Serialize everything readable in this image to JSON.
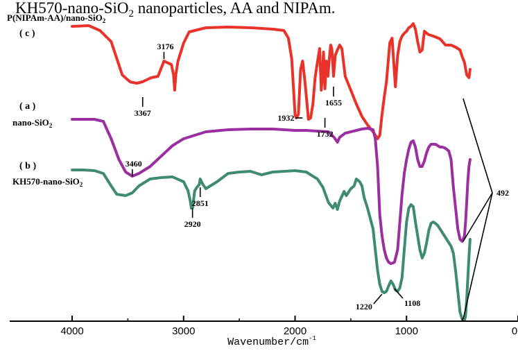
{
  "chart_data": {
    "type": "line",
    "title_partial": "KH570-nano-SiO",
    "title_partial_sub": "2",
    "title_partial_tail": " nanoparticles, AA and NIPAm.",
    "xlabel": "Wavenumber/cm",
    "xlabel_sup": "-1",
    "ylabel": "",
    "xlim": [
      4000,
      0
    ],
    "x_ticks": [
      {
        "value": 4000,
        "label": "4000"
      },
      {
        "value": 3000,
        "label": "3000"
      },
      {
        "value": 2000,
        "label": "2000"
      },
      {
        "value": 1000,
        "label": "1000"
      },
      {
        "value": 0,
        "label": "0"
      }
    ],
    "grid": false,
    "legend": "inline labels",
    "series": [
      {
        "id": "c",
        "tag": "( c )",
        "name_main": "P(NIPAm-AA)/nano-SiO",
        "name_sub": "2",
        "color": "#e8322a",
        "x": [
          4000,
          3850,
          3750,
          3650,
          3550,
          3480,
          3420,
          3370,
          3330,
          3290,
          3230,
          3200,
          3176,
          3150,
          3110,
          3090,
          3080,
          3070,
          3050,
          3000,
          2950,
          2800,
          2600,
          2400,
          2200,
          2100,
          2060,
          2030,
          2000,
          1990,
          1970,
          1950,
          1932,
          1910,
          1880,
          1860,
          1840,
          1820,
          1800,
          1780,
          1765,
          1755,
          1745,
          1732,
          1720,
          1705,
          1690,
          1680,
          1670,
          1655,
          1640,
          1620,
          1600,
          1580,
          1550,
          1500,
          1450,
          1400,
          1350,
          1300,
          1260,
          1240,
          1220,
          1200,
          1180,
          1150,
          1130,
          1100,
          1080,
          1060,
          1040,
          1020,
          1000,
          980,
          960,
          940,
          920,
          900,
          880,
          860,
          840,
          820,
          800,
          760,
          700,
          650,
          600,
          560,
          520,
          500,
          480,
          460,
          440,
          430
        ],
        "y": [
          38,
          37,
          44,
          60,
          108,
          118,
          120,
          118,
          115,
          112,
          110,
          98,
          88,
          90,
          93,
          108,
          130,
          108,
          88,
          62,
          46,
          40,
          39,
          40,
          42,
          44,
          55,
          85,
          165,
          170,
          165,
          100,
          88,
          120,
          172,
          170,
          150,
          112,
          90,
          70,
          130,
          110,
          75,
          128,
          88,
          110,
          80,
          65,
          70,
          110,
          80,
          72,
          65,
          70,
          110,
          130,
          150,
          168,
          180,
          190,
          200,
          195,
          165,
          140,
          118,
          62,
          55,
          125,
          80,
          60,
          52,
          48,
          45,
          40,
          38,
          34,
          42,
          60,
          75,
          72,
          45,
          48,
          50,
          52,
          56,
          65,
          65,
          68,
          72,
          82,
          90,
          108,
          112,
          100
        ],
        "annotations": [
          {
            "label": "3367",
            "x": 3367,
            "y": 140,
            "side": "below"
          },
          {
            "label": "3176",
            "x": 3176,
            "y": 85,
            "side": "above"
          },
          {
            "label": "1932",
            "x": 1932,
            "y": 170,
            "side": "left"
          },
          {
            "label": "1732",
            "x": 1732,
            "y": 170,
            "side": "below"
          },
          {
            "label": "1655",
            "x": 1655,
            "y": 125,
            "side": "below"
          }
        ]
      },
      {
        "id": "a",
        "tag": "( a )",
        "name_main": "nano-SiO",
        "name_sub": "2",
        "color": "#9b2fa0",
        "x": [
          4000,
          3800,
          3720,
          3650,
          3580,
          3520,
          3460,
          3400,
          3300,
          3200,
          3100,
          3000,
          2800,
          2600,
          2400,
          2200,
          2000,
          1900,
          1800,
          1700,
          1650,
          1620,
          1600,
          1550,
          1500,
          1450,
          1400,
          1350,
          1300,
          1280,
          1260,
          1240,
          1220,
          1200,
          1180,
          1160,
          1140,
          1120,
          1108,
          1080,
          1060,
          1040,
          1020,
          1000,
          980,
          960,
          940,
          920,
          900,
          880,
          860,
          840,
          820,
          800,
          780,
          760,
          740,
          720,
          700,
          680,
          660,
          640,
          620,
          600,
          580,
          560,
          540,
          520,
          500,
          480,
          470,
          460,
          450,
          440,
          430
        ],
        "y": [
          172,
          172,
          175,
          200,
          230,
          248,
          254,
          250,
          240,
          225,
          210,
          200,
          190,
          187,
          186,
          186,
          188,
          188,
          189,
          190,
          198,
          205,
          198,
          192,
          190,
          188,
          186,
          185,
          187,
          200,
          240,
          310,
          340,
          360,
          372,
          378,
          380,
          379,
          378,
          360,
          320,
          280,
          250,
          230,
          215,
          205,
          203,
          212,
          230,
          240,
          240,
          232,
          220,
          212,
          208,
          208,
          208,
          210,
          212,
          212,
          213,
          215,
          218,
          230,
          270,
          300,
          330,
          345,
          348,
          340,
          320,
          290,
          260,
          240,
          230
        ],
        "annotations": [
          {
            "label": "3460",
            "x": 3460,
            "y": 254,
            "side": "above"
          }
        ]
      },
      {
        "id": "b",
        "tag": "( b )",
        "name_main": "KH570-nano-SiO",
        "name_sub": "2",
        "color": "#3f8a72",
        "x": [
          4000,
          3900,
          3800,
          3720,
          3650,
          3600,
          3520,
          3460,
          3400,
          3300,
          3200,
          3100,
          3000,
          2960,
          2940,
          2930,
          2920,
          2900,
          2880,
          2860,
          2851,
          2830,
          2800,
          2700,
          2600,
          2500,
          2400,
          2300,
          2200,
          2000,
          1900,
          1800,
          1750,
          1700,
          1660,
          1640,
          1620,
          1600,
          1560,
          1540,
          1500,
          1470,
          1450,
          1420,
          1400,
          1380,
          1350,
          1300,
          1280,
          1260,
          1240,
          1220,
          1200,
          1180,
          1160,
          1140,
          1120,
          1100,
          1080,
          1060,
          1040,
          1020,
          1000,
          980,
          960,
          940,
          920,
          900,
          880,
          860,
          840,
          820,
          800,
          780,
          760,
          740,
          720,
          700,
          680,
          660,
          640,
          620,
          600,
          580,
          560,
          540,
          520,
          500,
          480,
          470,
          460,
          450,
          440,
          430
        ],
        "y": [
          245,
          245,
          246,
          250,
          268,
          280,
          282,
          278,
          268,
          258,
          256,
          255,
          262,
          275,
          290,
          300,
          300,
          275,
          270,
          266,
          258,
          265,
          272,
          262,
          250,
          248,
          247,
          252,
          248,
          246,
          248,
          258,
          270,
          292,
          300,
          293,
          302,
          290,
          276,
          282,
          272,
          268,
          258,
          262,
          268,
          285,
          300,
          330,
          360,
          390,
          410,
          420,
          422,
          420,
          412,
          405,
          410,
          418,
          420,
          415,
          400,
          360,
          320,
          300,
          295,
          298,
          320,
          340,
          360,
          372,
          365,
          350,
          332,
          322,
          320,
          322,
          325,
          330,
          335,
          340,
          345,
          350,
          355,
          365,
          390,
          420,
          450,
          460,
          462,
          455,
          430,
          400,
          370,
          345
        ],
        "annotations": [
          {
            "label": "2920",
            "x": 2920,
            "y": 300,
            "side": "below"
          },
          {
            "label": "2851",
            "x": 2851,
            "y": 270,
            "side": "below"
          },
          {
            "label": "1220",
            "x": 1220,
            "y": 424,
            "side": "below-left"
          },
          {
            "label": "1108",
            "x": 1108,
            "y": 416,
            "side": "below-right"
          }
        ]
      }
    ],
    "shared_annotation": {
      "label": "492",
      "x": 492,
      "targets": [
        {
          "series": "c",
          "y": 142
        },
        {
          "series": "a",
          "y": 348
        },
        {
          "series": "b",
          "y": 460
        }
      ]
    }
  }
}
